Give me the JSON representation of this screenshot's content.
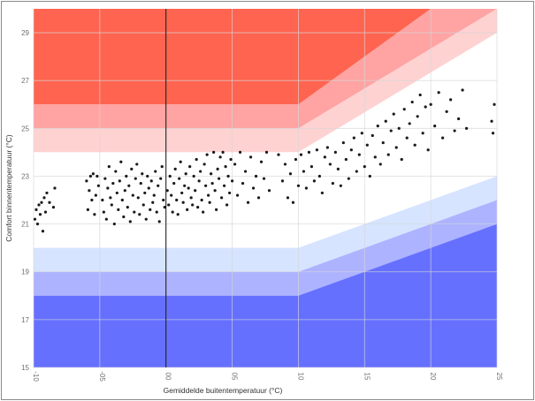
{
  "chart_data": {
    "type": "scatter",
    "title": "",
    "xlabel": "Gemiddelde buitentemperatuur (°C)",
    "ylabel": "Comfort binnentemperatuur (°C)",
    "xlim": [
      -10,
      25
    ],
    "ylim": [
      15,
      30
    ],
    "x_ticks": [
      -10,
      -5,
      0,
      5,
      10,
      15,
      20,
      25
    ],
    "x_tick_labels": [
      "-10",
      "-05",
      "00",
      "05",
      "10",
      "15",
      "20",
      "25"
    ],
    "y_ticks": [
      15,
      17,
      19,
      21,
      23,
      25,
      27,
      29
    ],
    "y_tick_labels": [
      "15",
      "17",
      "19",
      "21",
      "23",
      "25",
      "27",
      "29"
    ],
    "grid": true,
    "vertical_reference_line_x": 0,
    "comfort_bands": [
      {
        "name": "hot-3",
        "color": "#ff6450",
        "lower": [
          [
            -10,
            26
          ],
          [
            10,
            26
          ],
          [
            20,
            30
          ],
          [
            25,
            30
          ]
        ],
        "upper": [
          [
            -10,
            30
          ],
          [
            25,
            30
          ]
        ]
      },
      {
        "name": "hot-2",
        "color": "#ffa3a3",
        "lower": [
          [
            -10,
            25
          ],
          [
            10,
            25
          ],
          [
            25,
            30
          ]
        ],
        "upper": [
          [
            -10,
            26
          ],
          [
            10,
            26
          ],
          [
            20,
            30
          ],
          [
            25,
            30
          ]
        ]
      },
      {
        "name": "hot-1",
        "color": "#ffd2d2",
        "lower": [
          [
            -10,
            24
          ],
          [
            10,
            24
          ],
          [
            25,
            29
          ]
        ],
        "upper": [
          [
            -10,
            25
          ],
          [
            10,
            25
          ],
          [
            25,
            30
          ]
        ]
      },
      {
        "name": "neutral",
        "color": "#ffffff",
        "lower": [
          [
            -10,
            20
          ],
          [
            10,
            20
          ],
          [
            25,
            23
          ]
        ],
        "upper": [
          [
            -10,
            24
          ],
          [
            10,
            24
          ],
          [
            25,
            29
          ]
        ]
      },
      {
        "name": "cold-1",
        "color": "#d6e4ff",
        "lower": [
          [
            -10,
            19
          ],
          [
            10,
            19
          ],
          [
            25,
            22
          ]
        ],
        "upper": [
          [
            -10,
            20
          ],
          [
            10,
            20
          ],
          [
            25,
            23
          ]
        ]
      },
      {
        "name": "cold-2",
        "color": "#adb3ff",
        "lower": [
          [
            -10,
            18
          ],
          [
            10,
            18
          ],
          [
            25,
            21
          ]
        ],
        "upper": [
          [
            -10,
            19
          ],
          [
            10,
            19
          ],
          [
            25,
            22
          ]
        ]
      },
      {
        "name": "cold-3",
        "color": "#6670ff",
        "lower": [
          [
            -10,
            15
          ],
          [
            25,
            15
          ]
        ],
        "upper": [
          [
            -10,
            18
          ],
          [
            10,
            18
          ],
          [
            25,
            21
          ]
        ]
      }
    ],
    "point_color": "#1a1a1a",
    "points": [
      [
        -9.9,
        21.2
      ],
      [
        -9.8,
        21.6
      ],
      [
        -9.7,
        21.0
      ],
      [
        -9.6,
        21.8
      ],
      [
        -9.5,
        21.4
      ],
      [
        -9.4,
        21.9
      ],
      [
        -9.3,
        20.7
      ],
      [
        -9.2,
        22.1
      ],
      [
        -9.1,
        21.5
      ],
      [
        -9.0,
        22.3
      ],
      [
        -8.5,
        21.7
      ],
      [
        -8.4,
        22.5
      ],
      [
        -8.8,
        21.9
      ],
      [
        -6.0,
        22.8
      ],
      [
        -5.9,
        21.6
      ],
      [
        -5.8,
        22.4
      ],
      [
        -5.7,
        23.0
      ],
      [
        -5.6,
        22.0
      ],
      [
        -5.5,
        23.1
      ],
      [
        -5.4,
        21.4
      ],
      [
        -5.3,
        22.2
      ],
      [
        -5.2,
        23.0
      ],
      [
        -5.1,
        22.6
      ],
      [
        -4.8,
        22.0
      ],
      [
        -4.7,
        21.5
      ],
      [
        -4.6,
        22.9
      ],
      [
        -4.5,
        21.2
      ],
      [
        -4.4,
        22.5
      ],
      [
        -4.3,
        23.4
      ],
      [
        -4.2,
        22.1
      ],
      [
        -4.1,
        21.8
      ],
      [
        -4.0,
        22.7
      ],
      [
        -3.9,
        21.0
      ],
      [
        -3.8,
        23.2
      ],
      [
        -3.7,
        22.3
      ],
      [
        -3.6,
        21.6
      ],
      [
        -3.5,
        22.8
      ],
      [
        -3.4,
        23.6
      ],
      [
        -3.3,
        22.0
      ],
      [
        -3.2,
        21.3
      ],
      [
        -3.1,
        22.4
      ],
      [
        -3.0,
        23.0
      ],
      [
        -2.9,
        21.7
      ],
      [
        -2.8,
        22.6
      ],
      [
        -2.7,
        21.1
      ],
      [
        -2.6,
        23.3
      ],
      [
        -2.5,
        22.2
      ],
      [
        -2.4,
        21.5
      ],
      [
        -2.3,
        22.9
      ],
      [
        -2.2,
        23.5
      ],
      [
        -2.1,
        22.1
      ],
      [
        -2.0,
        21.4
      ],
      [
        -1.9,
        22.7
      ],
      [
        -1.8,
        23.1
      ],
      [
        -1.7,
        21.8
      ],
      [
        -1.6,
        22.3
      ],
      [
        -1.5,
        21.2
      ],
      [
        -1.4,
        23.0
      ],
      [
        -1.3,
        22.5
      ],
      [
        -1.2,
        21.6
      ],
      [
        -1.1,
        22.8
      ],
      [
        -1.0,
        21.9
      ],
      [
        -0.9,
        22.2
      ],
      [
        -0.8,
        23.2
      ],
      [
        -0.7,
        21.5
      ],
      [
        -0.6,
        22.6
      ],
      [
        -0.5,
        21.1
      ],
      [
        -0.4,
        22.9
      ],
      [
        -0.3,
        23.4
      ],
      [
        -0.2,
        22.0
      ],
      [
        -0.1,
        21.7
      ],
      [
        0.1,
        22.4
      ],
      [
        0.2,
        21.8
      ],
      [
        0.3,
        23.0
      ],
      [
        0.4,
        22.2
      ],
      [
        0.5,
        21.5
      ],
      [
        0.6,
        22.7
      ],
      [
        0.7,
        23.3
      ],
      [
        0.8,
        22.0
      ],
      [
        0.9,
        21.4
      ],
      [
        1.0,
        22.9
      ],
      [
        1.1,
        23.6
      ],
      [
        1.2,
        22.3
      ],
      [
        1.3,
        21.9
      ],
      [
        1.4,
        22.6
      ],
      [
        1.5,
        23.1
      ],
      [
        1.6,
        21.6
      ],
      [
        1.7,
        22.5
      ],
      [
        1.8,
        23.4
      ],
      [
        1.9,
        22.1
      ],
      [
        2.0,
        21.8
      ],
      [
        2.1,
        23.0
      ],
      [
        2.2,
        22.4
      ],
      [
        2.3,
        23.7
      ],
      [
        2.4,
        21.7
      ],
      [
        2.5,
        22.8
      ],
      [
        2.6,
        23.2
      ],
      [
        2.7,
        22.0
      ],
      [
        2.8,
        21.5
      ],
      [
        2.9,
        23.5
      ],
      [
        3.0,
        22.6
      ],
      [
        3.1,
        23.9
      ],
      [
        3.2,
        22.2
      ],
      [
        3.3,
        21.9
      ],
      [
        3.4,
        23.1
      ],
      [
        3.5,
        22.7
      ],
      [
        3.6,
        24.0
      ],
      [
        3.7,
        22.4
      ],
      [
        3.8,
        21.6
      ],
      [
        3.9,
        23.3
      ],
      [
        4.0,
        22.9
      ],
      [
        4.1,
        23.8
      ],
      [
        4.2,
        22.1
      ],
      [
        4.3,
        24.0
      ],
      [
        4.4,
        22.6
      ],
      [
        4.5,
        23.4
      ],
      [
        4.6,
        21.8
      ],
      [
        4.7,
        23.0
      ],
      [
        4.8,
        22.3
      ],
      [
        4.9,
        23.7
      ],
      [
        5.0,
        22.8
      ],
      [
        5.2,
        23.5
      ],
      [
        5.4,
        22.2
      ],
      [
        5.6,
        24.0
      ],
      [
        5.8,
        22.7
      ],
      [
        6.0,
        23.2
      ],
      [
        6.2,
        21.9
      ],
      [
        6.4,
        23.8
      ],
      [
        6.6,
        22.5
      ],
      [
        6.8,
        23.0
      ],
      [
        7.0,
        22.1
      ],
      [
        7.2,
        23.6
      ],
      [
        7.4,
        22.9
      ],
      [
        7.6,
        24.0
      ],
      [
        7.8,
        22.4
      ],
      [
        8.5,
        23.9
      ],
      [
        8.8,
        22.8
      ],
      [
        9.0,
        23.5
      ],
      [
        9.2,
        22.1
      ],
      [
        9.4,
        23.1
      ],
      [
        9.6,
        21.9
      ],
      [
        9.8,
        23.7
      ],
      [
        10.0,
        22.6
      ],
      [
        10.2,
        23.9
      ],
      [
        10.4,
        23.2
      ],
      [
        10.6,
        22.5
      ],
      [
        10.8,
        24.0
      ],
      [
        11.0,
        23.4
      ],
      [
        11.2,
        22.8
      ],
      [
        11.4,
        24.1
      ],
      [
        11.6,
        23.0
      ],
      [
        11.8,
        22.3
      ],
      [
        12.0,
        23.8
      ],
      [
        12.2,
        24.2
      ],
      [
        12.4,
        23.5
      ],
      [
        12.6,
        22.7
      ],
      [
        12.8,
        24.0
      ],
      [
        13.0,
        23.3
      ],
      [
        13.2,
        22.6
      ],
      [
        13.4,
        24.4
      ],
      [
        13.6,
        23.7
      ],
      [
        13.8,
        22.9
      ],
      [
        14.0,
        24.1
      ],
      [
        14.2,
        24.6
      ],
      [
        14.4,
        23.2
      ],
      [
        14.6,
        23.9
      ],
      [
        14.8,
        24.8
      ],
      [
        15.0,
        23.4
      ],
      [
        15.2,
        24.3
      ],
      [
        15.4,
        23.0
      ],
      [
        15.6,
        24.7
      ],
      [
        15.8,
        23.8
      ],
      [
        16.0,
        25.1
      ],
      [
        16.2,
        23.5
      ],
      [
        16.4,
        24.4
      ],
      [
        16.6,
        25.3
      ],
      [
        16.8,
        23.9
      ],
      [
        17.0,
        24.9
      ],
      [
        17.2,
        25.6
      ],
      [
        17.4,
        24.2
      ],
      [
        17.6,
        25.0
      ],
      [
        17.8,
        23.7
      ],
      [
        18.0,
        25.8
      ],
      [
        18.2,
        24.6
      ],
      [
        18.4,
        25.2
      ],
      [
        18.6,
        26.1
      ],
      [
        18.8,
        24.3
      ],
      [
        19.0,
        25.5
      ],
      [
        19.2,
        26.4
      ],
      [
        19.4,
        24.8
      ],
      [
        19.6,
        25.9
      ],
      [
        19.8,
        24.1
      ],
      [
        20.0,
        26.0
      ],
      [
        20.3,
        25.1
      ],
      [
        20.6,
        26.5
      ],
      [
        20.9,
        24.6
      ],
      [
        21.2,
        25.7
      ],
      [
        21.5,
        26.2
      ],
      [
        21.8,
        24.9
      ],
      [
        22.1,
        25.4
      ],
      [
        22.4,
        26.6
      ],
      [
        22.7,
        25.0
      ],
      [
        24.6,
        25.3
      ],
      [
        24.8,
        26.0
      ],
      [
        24.7,
        24.8
      ]
    ]
  }
}
